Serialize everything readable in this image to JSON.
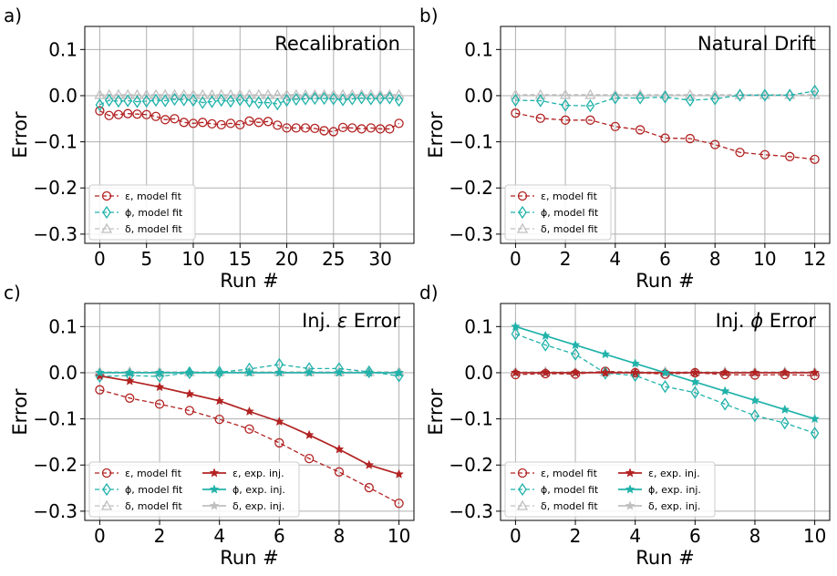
{
  "figure": {
    "ylabel": "Error",
    "xlabel": "Run #"
  },
  "chart_data": [
    {
      "panel": "a)",
      "type": "line",
      "title": "Recalibration",
      "xlabel": "Run #",
      "ylabel": "Error",
      "xlim": [
        -1.6,
        33.6
      ],
      "ylim": [
        -0.32,
        0.15
      ],
      "xticks": [
        0,
        5,
        10,
        15,
        20,
        25,
        30
      ],
      "yticks": [
        -0.3,
        -0.2,
        -0.1,
        0.0,
        0.1
      ],
      "ytick_labels": [
        "−0.3",
        "−0.2",
        "−0.1",
        "0.0",
        "0.1"
      ],
      "grid": true,
      "legend": {
        "position": "lower-left",
        "columns": 1
      },
      "series": [
        {
          "name": "ε, model fit",
          "key": "eps",
          "style": "fit",
          "x": [
            0,
            1,
            2,
            3,
            4,
            5,
            6,
            7,
            8,
            9,
            10,
            11,
            12,
            13,
            14,
            15,
            16,
            17,
            18,
            19,
            20,
            21,
            22,
            23,
            24,
            25,
            26,
            27,
            28,
            29,
            30,
            31,
            32
          ],
          "values": [
            -0.033,
            -0.043,
            -0.041,
            -0.039,
            -0.04,
            -0.041,
            -0.045,
            -0.052,
            -0.05,
            -0.058,
            -0.06,
            -0.058,
            -0.061,
            -0.063,
            -0.06,
            -0.063,
            -0.055,
            -0.058,
            -0.056,
            -0.064,
            -0.07,
            -0.07,
            -0.07,
            -0.071,
            -0.076,
            -0.078,
            -0.069,
            -0.07,
            -0.072,
            -0.07,
            -0.072,
            -0.072,
            -0.06
          ]
        },
        {
          "name": "ϕ, model fit",
          "key": "phi",
          "style": "fit",
          "x": [
            0,
            1,
            2,
            3,
            4,
            5,
            6,
            7,
            8,
            9,
            10,
            11,
            12,
            13,
            14,
            15,
            16,
            17,
            18,
            19,
            20,
            21,
            22,
            23,
            24,
            25,
            26,
            27,
            28,
            29,
            30,
            31,
            32
          ],
          "values": [
            -0.02,
            -0.01,
            -0.012,
            -0.011,
            -0.013,
            -0.012,
            -0.01,
            -0.011,
            -0.008,
            -0.009,
            -0.01,
            -0.015,
            -0.013,
            -0.01,
            -0.012,
            -0.009,
            -0.012,
            -0.015,
            -0.015,
            -0.018,
            -0.01,
            -0.008,
            -0.007,
            -0.006,
            -0.006,
            -0.007,
            -0.009,
            -0.007,
            -0.005,
            -0.007,
            -0.006,
            -0.005,
            -0.01
          ]
        },
        {
          "name": "δ, model fit",
          "key": "delta",
          "style": "fit",
          "x": [
            0,
            1,
            2,
            3,
            4,
            5,
            6,
            7,
            8,
            9,
            10,
            11,
            12,
            13,
            14,
            15,
            16,
            17,
            18,
            19,
            20,
            21,
            22,
            23,
            24,
            25,
            26,
            27,
            28,
            29,
            30,
            31,
            32
          ],
          "values": [
            0.002,
            0.002,
            0.002,
            0.002,
            0.002,
            0.002,
            0.002,
            0.002,
            0.002,
            0.002,
            0.002,
            0.002,
            0.002,
            0.002,
            0.002,
            0.002,
            0.002,
            0.002,
            0.002,
            0.002,
            0.002,
            0.002,
            0.002,
            0.002,
            0.002,
            0.002,
            0.002,
            0.002,
            0.002,
            0.002,
            0.002,
            0.002,
            0.002
          ]
        }
      ]
    },
    {
      "panel": "b)",
      "type": "line",
      "title": "Natural Drift",
      "xlabel": "Run #",
      "ylabel": "Error",
      "xlim": [
        -0.6,
        12.6
      ],
      "ylim": [
        -0.32,
        0.15
      ],
      "xticks": [
        0,
        2,
        4,
        6,
        8,
        10,
        12
      ],
      "yticks": [
        -0.3,
        -0.2,
        -0.1,
        0.0,
        0.1
      ],
      "ytick_labels": [
        "−0.3",
        "−0.2",
        "−0.1",
        "0.0",
        "0.1"
      ],
      "grid": true,
      "legend": {
        "position": "lower-left",
        "columns": 1
      },
      "series": [
        {
          "name": "ε, model fit",
          "key": "eps",
          "style": "fit",
          "x": [
            0,
            1,
            2,
            3,
            4,
            5,
            6,
            7,
            8,
            9,
            10,
            11,
            12
          ],
          "values": [
            -0.038,
            -0.049,
            -0.053,
            -0.053,
            -0.067,
            -0.074,
            -0.092,
            -0.093,
            -0.106,
            -0.123,
            -0.128,
            -0.132,
            -0.138
          ]
        },
        {
          "name": "ϕ, model fit",
          "key": "phi",
          "style": "fit",
          "x": [
            0,
            1,
            2,
            3,
            4,
            5,
            6,
            7,
            8,
            9,
            10,
            11,
            12
          ],
          "values": [
            -0.01,
            -0.011,
            -0.021,
            -0.022,
            -0.005,
            -0.005,
            -0.003,
            -0.01,
            -0.007,
            0.001,
            0.001,
            0.001,
            0.01
          ]
        },
        {
          "name": "δ, model fit",
          "key": "delta",
          "style": "fit",
          "x": [
            0,
            1,
            2,
            3,
            4,
            5,
            6,
            7,
            8,
            9,
            10,
            11,
            12
          ],
          "values": [
            0.002,
            0.002,
            0.002,
            0.002,
            0.002,
            0.002,
            0.002,
            0.002,
            0.002,
            0.002,
            0.002,
            0.002,
            0.002
          ]
        }
      ]
    },
    {
      "panel": "c)",
      "type": "line",
      "title_prefix": "Inj. ",
      "title_symbol": "ε",
      "title_suffix": " Error",
      "xlabel": "Run #",
      "ylabel": "Error",
      "xlim": [
        -0.5,
        10.5
      ],
      "ylim": [
        -0.32,
        0.15
      ],
      "xticks": [
        0,
        2,
        4,
        6,
        8,
        10
      ],
      "yticks": [
        -0.3,
        -0.2,
        -0.1,
        0.0,
        0.1
      ],
      "ytick_labels": [
        "−0.3",
        "−0.2",
        "−0.1",
        "0.0",
        "0.1"
      ],
      "grid": true,
      "legend": {
        "position": "lower-left",
        "columns": 2
      },
      "series": [
        {
          "name": "ε, model fit",
          "key": "eps",
          "style": "fit",
          "x": [
            0,
            1,
            2,
            3,
            4,
            5,
            6,
            7,
            8,
            9,
            10
          ],
          "values": [
            -0.037,
            -0.055,
            -0.068,
            -0.082,
            -0.101,
            -0.122,
            -0.152,
            -0.186,
            -0.215,
            -0.249,
            -0.283
          ]
        },
        {
          "name": "ϕ, model fit",
          "key": "phi",
          "style": "fit",
          "x": [
            0,
            1,
            2,
            3,
            4,
            5,
            6,
            7,
            8,
            9,
            10
          ],
          "values": [
            -0.008,
            -0.006,
            -0.008,
            0.0,
            0.001,
            0.008,
            0.018,
            0.009,
            0.009,
            0.002,
            -0.007
          ]
        },
        {
          "name": "δ, model fit",
          "key": "delta",
          "style": "fit",
          "x": [
            0,
            1,
            2,
            3,
            4,
            5,
            6,
            7,
            8,
            9,
            10
          ],
          "values": [
            0.002,
            0.002,
            0.002,
            0.002,
            0.002,
            0.002,
            0.002,
            0.002,
            0.002,
            0.002,
            0.002
          ]
        },
        {
          "name": "ε, exp. inj.",
          "key": "eps",
          "style": "inj",
          "x": [
            0,
            1,
            2,
            3,
            4,
            5,
            6,
            7,
            8,
            9,
            10
          ],
          "values": [
            -0.007,
            -0.018,
            -0.031,
            -0.046,
            -0.061,
            -0.084,
            -0.106,
            -0.135,
            -0.166,
            -0.2,
            -0.22
          ]
        },
        {
          "name": "ϕ, exp. inj.",
          "key": "phi",
          "style": "inj",
          "x": [
            0,
            1,
            2,
            3,
            4,
            5,
            6,
            7,
            8,
            9,
            10
          ],
          "values": [
            0.0,
            0.0,
            0.0,
            0.0,
            0.0,
            0.0,
            0.0,
            0.0,
            0.0,
            0.0,
            0.0
          ]
        },
        {
          "name": "δ, exp. inj.",
          "key": "delta",
          "style": "inj",
          "x": [
            0,
            1,
            2,
            3,
            4,
            5,
            6,
            7,
            8,
            9,
            10
          ],
          "values": [
            0.0,
            0.0,
            0.0,
            0.0,
            0.0,
            0.0,
            0.0,
            0.0,
            0.0,
            0.0,
            0.0
          ]
        }
      ]
    },
    {
      "panel": "d)",
      "type": "line",
      "title_prefix": "Inj. ",
      "title_symbol": "ϕ",
      "title_suffix": " Error",
      "xlabel": "Run #",
      "ylabel": "Error",
      "xlim": [
        -0.5,
        10.5
      ],
      "ylim": [
        -0.32,
        0.15
      ],
      "xticks": [
        0,
        2,
        4,
        6,
        8,
        10
      ],
      "yticks": [
        -0.3,
        -0.2,
        -0.1,
        0.0,
        0.1
      ],
      "ytick_labels": [
        "−0.3",
        "−0.2",
        "−0.1",
        "0.0",
        "0.1"
      ],
      "grid": true,
      "legend": {
        "position": "lower-left",
        "columns": 2
      },
      "series": [
        {
          "name": "ε, model fit",
          "key": "eps",
          "style": "fit",
          "x": [
            0,
            1,
            2,
            3,
            4,
            5,
            6,
            7,
            8,
            9,
            10
          ],
          "values": [
            -0.004,
            -0.002,
            -0.003,
            0.003,
            0.0,
            -0.003,
            0.0,
            -0.004,
            -0.005,
            -0.004,
            -0.006
          ]
        },
        {
          "name": "ϕ, model fit",
          "key": "phi",
          "style": "fit",
          "x": [
            0,
            1,
            2,
            3,
            4,
            5,
            6,
            7,
            8,
            9,
            10
          ],
          "values": [
            0.084,
            0.06,
            0.04,
            -0.001,
            -0.006,
            -0.03,
            -0.043,
            -0.068,
            -0.093,
            -0.109,
            -0.131
          ]
        },
        {
          "name": "δ, model fit",
          "key": "delta",
          "style": "fit",
          "x": [
            0,
            1,
            2,
            3,
            4,
            5,
            6,
            7,
            8,
            9,
            10
          ],
          "values": [
            0.002,
            0.002,
            0.002,
            0.002,
            0.002,
            0.002,
            0.002,
            0.002,
            0.002,
            0.002,
            0.002
          ]
        },
        {
          "name": "ε, exp. inj.",
          "key": "eps",
          "style": "inj",
          "x": [
            0,
            1,
            2,
            3,
            4,
            5,
            6,
            7,
            8,
            9,
            10
          ],
          "values": [
            0.0,
            0.0,
            0.0,
            0.0,
            0.0,
            0.0,
            0.0,
            0.0,
            0.0,
            0.0,
            0.0
          ]
        },
        {
          "name": "ϕ, exp. inj.",
          "key": "phi",
          "style": "inj",
          "x": [
            0,
            1,
            2,
            3,
            4,
            5,
            6,
            7,
            8,
            9,
            10
          ],
          "values": [
            0.1,
            0.08,
            0.06,
            0.04,
            0.02,
            0.0,
            -0.02,
            -0.04,
            -0.06,
            -0.08,
            -0.1
          ]
        },
        {
          "name": "δ, exp. inj.",
          "key": "delta",
          "style": "inj",
          "x": [
            0,
            1,
            2,
            3,
            4,
            5,
            6,
            7,
            8,
            9,
            10
          ],
          "values": [
            0.0,
            0.0,
            0.0,
            0.0,
            0.0,
            0.0,
            0.0,
            0.0,
            0.0,
            0.0,
            0.0
          ]
        }
      ]
    }
  ],
  "colors": {
    "eps": "#b22222",
    "phi": "#20b2aa",
    "delta": "#c0c0c0",
    "grid": "#b0b0b0"
  }
}
